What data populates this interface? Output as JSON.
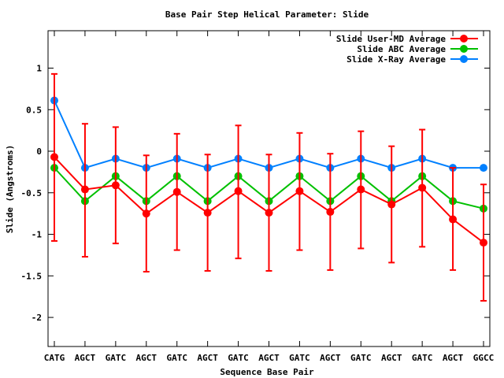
{
  "chart_data": {
    "type": "line",
    "title": "Base Pair Step Helical Parameter: Slide",
    "xlabel": "Sequence Base Pair",
    "ylabel": "Slide (Angstroms)",
    "ylim": [
      -2.35,
      1.45
    ],
    "yticks": [
      1,
      0.5,
      0,
      -0.5,
      -1,
      -1.5,
      -2
    ],
    "ytick_labels": [
      "1",
      "0.5",
      "0",
      "-0.5",
      "-1",
      "-1.5",
      "-2"
    ],
    "categories": [
      "CATG",
      "AGCT",
      "GATC",
      "AGCT",
      "GATC",
      "AGCT",
      "GATC",
      "AGCT",
      "GATC",
      "AGCT",
      "GATC",
      "AGCT",
      "GATC",
      "AGCT",
      "GGCC"
    ],
    "grid": false,
    "legend_position": "top-right",
    "series": [
      {
        "name": "Slide User-MD Average",
        "color": "#ff0000",
        "values": [
          -0.07,
          -0.46,
          -0.41,
          -0.75,
          -0.49,
          -0.74,
          -0.48,
          -0.74,
          -0.48,
          -0.73,
          -0.46,
          -0.64,
          -0.44,
          -0.82,
          -1.1
        ],
        "error_low": [
          -1.08,
          -1.27,
          -1.11,
          -1.45,
          -1.19,
          -1.44,
          -1.29,
          -1.44,
          -1.19,
          -1.43,
          -1.17,
          -1.34,
          -1.15,
          -1.43,
          -1.8
        ],
        "error_high": [
          0.93,
          0.33,
          0.29,
          -0.05,
          0.21,
          -0.04,
          0.31,
          -0.04,
          0.22,
          -0.03,
          0.24,
          0.06,
          0.26,
          -0.2,
          -0.4
        ]
      },
      {
        "name": "Slide ABC Average",
        "color": "#00c000",
        "values": [
          -0.2,
          -0.6,
          -0.3,
          -0.6,
          -0.3,
          -0.6,
          -0.3,
          -0.6,
          -0.3,
          -0.6,
          -0.3,
          -0.6,
          -0.3,
          -0.6,
          -0.69
        ]
      },
      {
        "name": "Slide X-Ray Average",
        "color": "#0080ff",
        "values": [
          0.61,
          -0.2,
          -0.09,
          -0.2,
          -0.09,
          -0.2,
          -0.09,
          -0.2,
          -0.09,
          -0.2,
          -0.09,
          -0.2,
          -0.09,
          -0.2,
          -0.2
        ]
      }
    ]
  }
}
